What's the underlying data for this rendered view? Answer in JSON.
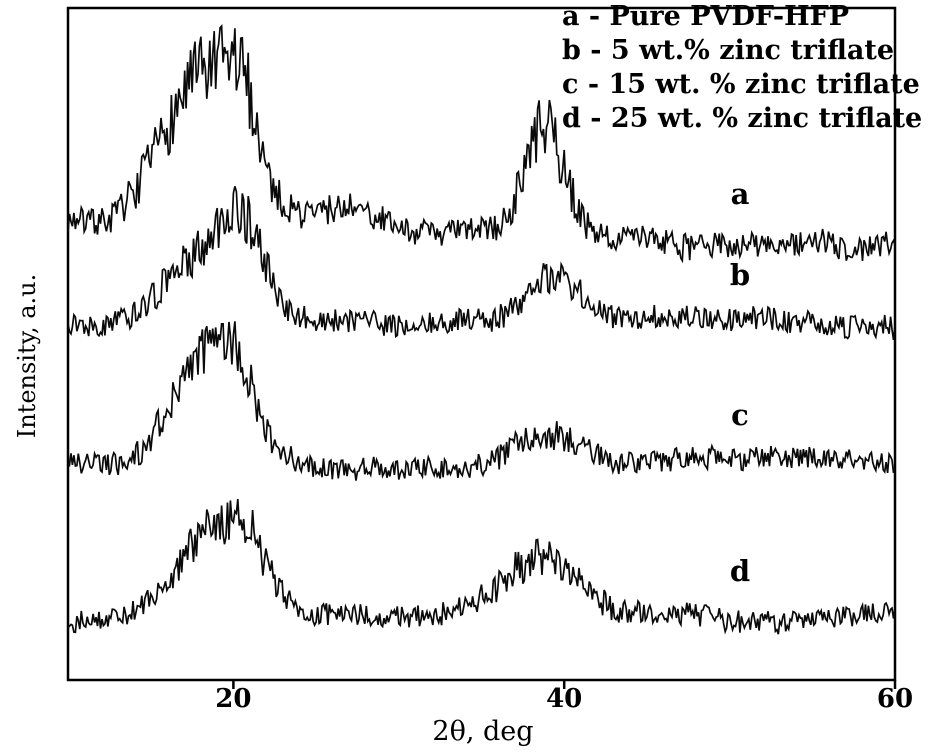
{
  "chart_data": {
    "type": "line",
    "title": "",
    "xlabel": "2θ, deg",
    "ylabel": "Intensity, a.u.",
    "xlim": [
      10,
      60
    ],
    "ylim": [
      0,
      1
    ],
    "grid": false,
    "legend_position": "top-right",
    "line_color": "#0a0a0a",
    "x_ticks": [
      "20",
      "40",
      "60"
    ],
    "x_tick_values": [
      20,
      40,
      60
    ],
    "legend": [
      "a - Pure PVDF-HFP",
      "b - 5 wt.% zinc triflate",
      "c - 15 wt. % zinc triflate",
      "d - 25 wt. % zinc triflate"
    ],
    "series": [
      {
        "name": "a",
        "sample": "Pure PVDF-HFP",
        "baseline": 0.685,
        "tilt": -0.045,
        "noise": 0.02,
        "seed": 7,
        "peaks": [
          {
            "c": 18.2,
            "h": 0.225,
            "w": 2.4
          },
          {
            "c": 20.5,
            "h": 0.09,
            "w": 0.9
          },
          {
            "c": 26.5,
            "h": 0.028,
            "w": 1.6
          },
          {
            "c": 38.8,
            "h": 0.16,
            "w": 1.2
          }
        ]
      },
      {
        "name": "b",
        "sample": "5 wt.% zinc triflate",
        "baseline": 0.535,
        "tilt": -0.008,
        "noise": 0.017,
        "seed": 13,
        "peaks": [
          {
            "c": 18.0,
            "h": 0.095,
            "w": 2.3
          },
          {
            "c": 20.6,
            "h": 0.11,
            "w": 1.3
          },
          {
            "c": 39.2,
            "h": 0.06,
            "w": 1.6
          }
        ]
      },
      {
        "name": "c",
        "sample": "15 wt. % zinc triflate",
        "baseline": 0.325,
        "tilt": -0.006,
        "noise": 0.017,
        "seed": 21,
        "peaks": [
          {
            "c": 18.3,
            "h": 0.15,
            "w": 2.1
          },
          {
            "c": 20.3,
            "h": 0.07,
            "w": 1.0
          },
          {
            "c": 39.0,
            "h": 0.05,
            "w": 2.0
          }
        ]
      },
      {
        "name": "d",
        "sample": "25 wt. % zinc triflate",
        "baseline": 0.09,
        "tilt": -0.002,
        "noise": 0.016,
        "seed": 29,
        "peaks": [
          {
            "c": 18.9,
            "h": 0.125,
            "w": 2.3
          },
          {
            "c": 20.9,
            "h": 0.05,
            "w": 1.0
          },
          {
            "c": 38.6,
            "h": 0.1,
            "w": 2.6
          }
        ]
      }
    ]
  }
}
